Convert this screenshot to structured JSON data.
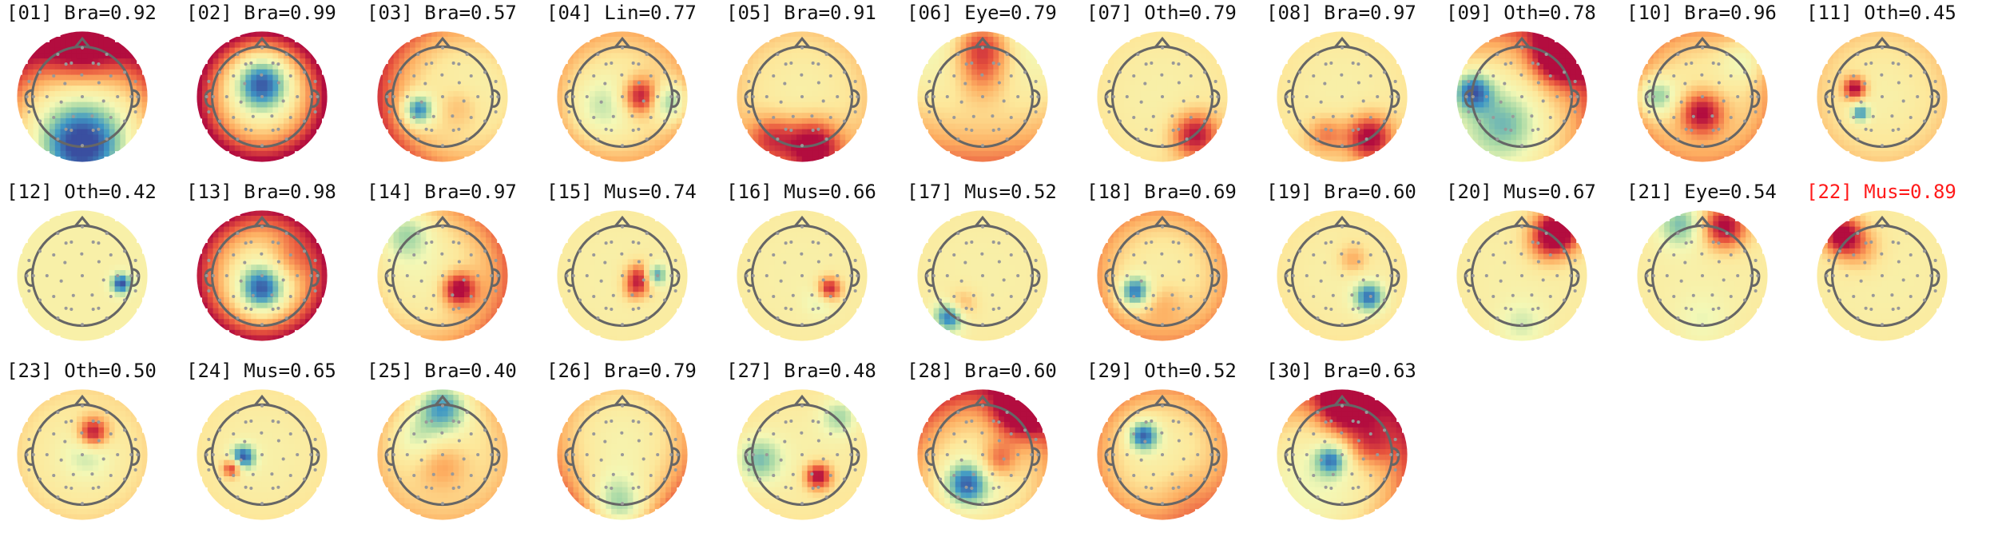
{
  "colors": {
    "title_text": "#111111",
    "flagged_title": "#ff1a1a",
    "head_outline": "#666666",
    "sensor_dot": "#999999",
    "colormap": [
      "#3a4fa0",
      "#3f98c5",
      "#9fd5a4",
      "#f3f8b6",
      "#fde79a",
      "#fdae61",
      "#e8553d",
      "#b30d3f"
    ]
  },
  "components": [
    {
      "title": "[01] Bra=0.92",
      "flagged": false
    },
    {
      "title": "[02] Bra=0.99",
      "flagged": false
    },
    {
      "title": "[03] Bra=0.57",
      "flagged": false
    },
    {
      "title": "[04] Lin=0.77",
      "flagged": false
    },
    {
      "title": "[05] Bra=0.91",
      "flagged": false
    },
    {
      "title": "[06] Eye=0.79",
      "flagged": false
    },
    {
      "title": "[07] Oth=0.79",
      "flagged": false
    },
    {
      "title": "[08] Bra=0.97",
      "flagged": false
    },
    {
      "title": "[09] Oth=0.78",
      "flagged": false
    },
    {
      "title": "[10] Bra=0.96",
      "flagged": false
    },
    {
      "title": "[11] Oth=0.45",
      "flagged": false
    },
    {
      "title": "[12] Oth=0.42",
      "flagged": false
    },
    {
      "title": "[13] Bra=0.98",
      "flagged": false
    },
    {
      "title": "[14] Bra=0.97",
      "flagged": false
    },
    {
      "title": "[15] Mus=0.74",
      "flagged": false
    },
    {
      "title": "[16] Mus=0.66",
      "flagged": false
    },
    {
      "title": "[17] Mus=0.52",
      "flagged": false
    },
    {
      "title": "[18] Bra=0.69",
      "flagged": false
    },
    {
      "title": "[19] Bra=0.60",
      "flagged": false
    },
    {
      "title": "[20] Mus=0.67",
      "flagged": false
    },
    {
      "title": "[21] Eye=0.54",
      "flagged": false
    },
    {
      "title": "[22] Mus=0.89",
      "flagged": true
    },
    {
      "title": "[23] Oth=0.50",
      "flagged": false
    },
    {
      "title": "[24] Mus=0.65",
      "flagged": false
    },
    {
      "title": "[25] Bra=0.40",
      "flagged": false
    },
    {
      "title": "[26] Bra=0.79",
      "flagged": false
    },
    {
      "title": "[27] Bra=0.48",
      "flagged": false
    },
    {
      "title": "[28] Bra=0.60",
      "flagged": false
    },
    {
      "title": "[29] Oth=0.52",
      "flagged": false
    },
    {
      "title": "[30] Bra=0.63",
      "flagged": false
    }
  ]
}
